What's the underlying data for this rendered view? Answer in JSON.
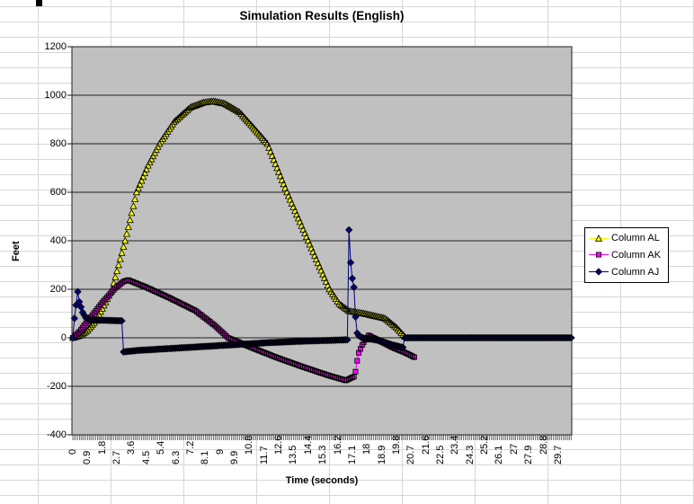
{
  "chart_data": {
    "type": "line",
    "title": "Simulation Results (English)",
    "xlabel": "Time (seconds)",
    "ylabel": "Feet",
    "ylim": [
      -400,
      1200
    ],
    "y_tick_step": 200,
    "y_tick_labels": [
      "1200",
      "1000",
      "800",
      "600",
      "400",
      "200",
      "0",
      "-200",
      "-400"
    ],
    "x_tick_labels": [
      "0",
      "0.9",
      "1.8",
      "2.7",
      "3.6",
      "4.5",
      "5.4",
      "6.3",
      "7.2",
      "8.1",
      "9",
      "9.9",
      "10.8",
      "11.7",
      "12.6",
      "13.5",
      "14.4",
      "15.3",
      "16.2",
      "17.1",
      "18",
      "18.9",
      "19.8",
      "20.7",
      "21.6",
      "22.5",
      "23.4",
      "24.3",
      "25.2",
      "26.1",
      "27",
      "27.9",
      "28.8",
      "29.7"
    ],
    "x_tick_interval_s": 0.9,
    "x_range_s": [
      0,
      30.5
    ],
    "sample_step_s": 0.1,
    "plot_bg": "#C0C0C0",
    "gridline_color": "#1f1f1f",
    "grid": "horizontal",
    "legend_position": "right",
    "series": [
      {
        "name": "Column AL",
        "marker": "triangle",
        "color": "#FFFF00",
        "keypoints": [
          [
            0,
            0
          ],
          [
            0.5,
            10
          ],
          [
            0.9,
            30
          ],
          [
            1.4,
            70
          ],
          [
            1.8,
            120
          ],
          [
            2.4,
            200
          ],
          [
            3.2,
            400
          ],
          [
            3.9,
            600
          ],
          [
            4.6,
            710
          ],
          [
            5.3,
            800
          ],
          [
            6.2,
            890
          ],
          [
            7.2,
            950
          ],
          [
            8.0,
            970
          ],
          [
            8.6,
            975
          ],
          [
            9.3,
            965
          ],
          [
            10.2,
            930
          ],
          [
            11.0,
            870
          ],
          [
            11.9,
            800
          ],
          [
            13.1,
            600
          ],
          [
            14.4,
            400
          ],
          [
            15.7,
            200
          ],
          [
            16.3,
            140
          ],
          [
            16.9,
            110
          ],
          [
            17.8,
            100
          ],
          [
            19.1,
            80
          ],
          [
            19.8,
            42
          ],
          [
            20.3,
            5
          ]
        ]
      },
      {
        "name": "Column AK",
        "marker": "square",
        "color": "#FF00FF",
        "keypoints": [
          [
            0,
            0
          ],
          [
            0.4,
            25
          ],
          [
            0.9,
            68
          ],
          [
            1.8,
            145
          ],
          [
            2.6,
            205
          ],
          [
            3.1,
            232
          ],
          [
            3.4,
            238
          ],
          [
            4.5,
            208
          ],
          [
            6.0,
            162
          ],
          [
            7.5,
            112
          ],
          [
            8.7,
            50
          ],
          [
            9.5,
            0
          ],
          [
            11.0,
            -42
          ],
          [
            12.5,
            -82
          ],
          [
            14.0,
            -118
          ],
          [
            15.5,
            -152
          ],
          [
            16.7,
            -176
          ],
          [
            17.2,
            -160
          ],
          [
            17.3,
            -140
          ],
          [
            17.4,
            -95
          ],
          [
            17.5,
            -62
          ],
          [
            17.7,
            -30
          ],
          [
            17.9,
            -8
          ],
          [
            18.1,
            10
          ],
          [
            18.7,
            -10
          ],
          [
            19.5,
            -38
          ],
          [
            20.3,
            -60
          ],
          [
            20.9,
            -80
          ]
        ]
      },
      {
        "name": "Column AJ",
        "marker": "diamond",
        "color": "#000080",
        "keypoints": [
          [
            0,
            0
          ],
          [
            0.1,
            80
          ],
          [
            0.2,
            135
          ],
          [
            0.3,
            190
          ],
          [
            0.4,
            148
          ],
          [
            0.6,
            105
          ],
          [
            0.8,
            82
          ],
          [
            1.0,
            74
          ],
          [
            2.0,
            72
          ],
          [
            3.0,
            70
          ],
          [
            3.1,
            -58
          ],
          [
            4.0,
            -52
          ],
          [
            6.0,
            -44
          ],
          [
            8.0,
            -36
          ],
          [
            10.0,
            -28
          ],
          [
            12.0,
            -20
          ],
          [
            14.0,
            -14
          ],
          [
            16.0,
            -10
          ],
          [
            16.8,
            -8
          ],
          [
            16.9,
            445
          ],
          [
            17.0,
            310
          ],
          [
            17.1,
            245
          ],
          [
            17.2,
            208
          ],
          [
            17.35,
            25
          ],
          [
            17.5,
            8
          ],
          [
            17.8,
            -2
          ],
          [
            18.3,
            -6
          ],
          [
            18.8,
            -12
          ],
          [
            19.5,
            -28
          ],
          [
            20.2,
            -40
          ],
          [
            20.3,
            0
          ],
          [
            30.5,
            0
          ]
        ]
      }
    ]
  }
}
